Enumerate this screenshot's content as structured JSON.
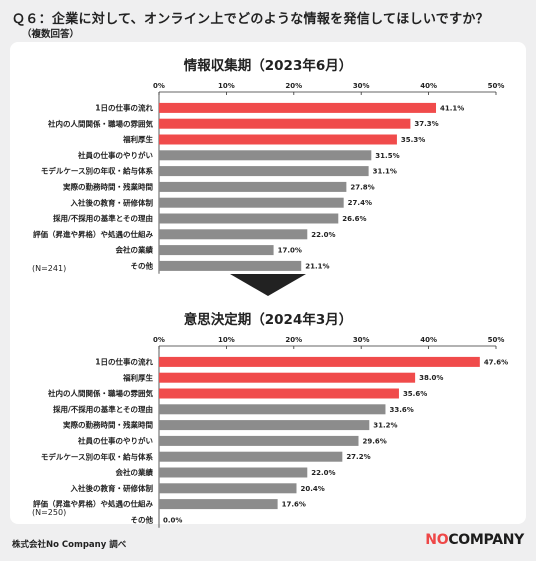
{
  "question": "Ｑ６：企業に対して、オンライン上でどのような情報を発信してほしいですか？",
  "note": "（複数回答）",
  "colors": {
    "highlight": "#f04b4b",
    "normal": "#8c8c8c",
    "axis": "#333333"
  },
  "footer": {
    "source": "株式会社No Company 調べ",
    "logo_prefix": "NO",
    "logo_suffix": "COMPANY"
  },
  "chart_data": [
    {
      "type": "bar",
      "orientation": "horizontal",
      "title": "情報収集期（2023年6月）",
      "n_label": "(N=241)",
      "xlim": [
        0,
        50
      ],
      "ticks": [
        "0%",
        "10%",
        "20%",
        "30%",
        "40%",
        "50%"
      ],
      "tick_values": [
        0,
        10,
        20,
        30,
        40,
        50
      ],
      "highlight_count": 3,
      "categories": [
        "1日の仕事の流れ",
        "社内の人間関係・職場の雰囲気",
        "福利厚生",
        "社員の仕事のやりがい",
        "モデルケース別の年収・給与体系",
        "実際の勤務時間・残業時間",
        "入社後の教育・研修体制",
        "採用/不採用の基準とその理由",
        "評価（昇進や昇格）や処遇の仕組み",
        "会社の業績",
        "その他"
      ],
      "values": [
        41.1,
        37.3,
        35.3,
        31.5,
        31.1,
        27.8,
        27.4,
        26.6,
        22.0,
        17.0,
        21.1
      ],
      "value_labels": [
        "41.1%",
        "37.3%",
        "35.3%",
        "31.5%",
        "31.1%",
        "27.8%",
        "27.4%",
        "26.6%",
        "22.0%",
        "17.0%",
        "21.1%"
      ]
    },
    {
      "type": "bar",
      "orientation": "horizontal",
      "title": "意思決定期（2024年3月）",
      "n_label": "(N=250)",
      "xlim": [
        0,
        50
      ],
      "ticks": [
        "0%",
        "10%",
        "20%",
        "30%",
        "40%",
        "50%"
      ],
      "tick_values": [
        0,
        10,
        20,
        30,
        40,
        50
      ],
      "highlight_count": 3,
      "categories": [
        "1日の仕事の流れ",
        "福利厚生",
        "社内の人間関係・職場の雰囲気",
        "採用/不採用の基準とその理由",
        "実際の勤務時間・残業時間",
        "社員の仕事のやりがい",
        "モデルケース別の年収・給与体系",
        "会社の業績",
        "入社後の教育・研修体制",
        "評価（昇進や昇格）や処遇の仕組み",
        "その他"
      ],
      "values": [
        47.6,
        38.0,
        35.6,
        33.6,
        31.2,
        29.6,
        27.2,
        22.0,
        20.4,
        17.6,
        0.0
      ],
      "value_labels": [
        "47.6%",
        "38.0%",
        "35.6%",
        "33.6%",
        "31.2%",
        "29.6%",
        "27.2%",
        "22.0%",
        "20.4%",
        "17.6%",
        "0.0%"
      ]
    }
  ]
}
